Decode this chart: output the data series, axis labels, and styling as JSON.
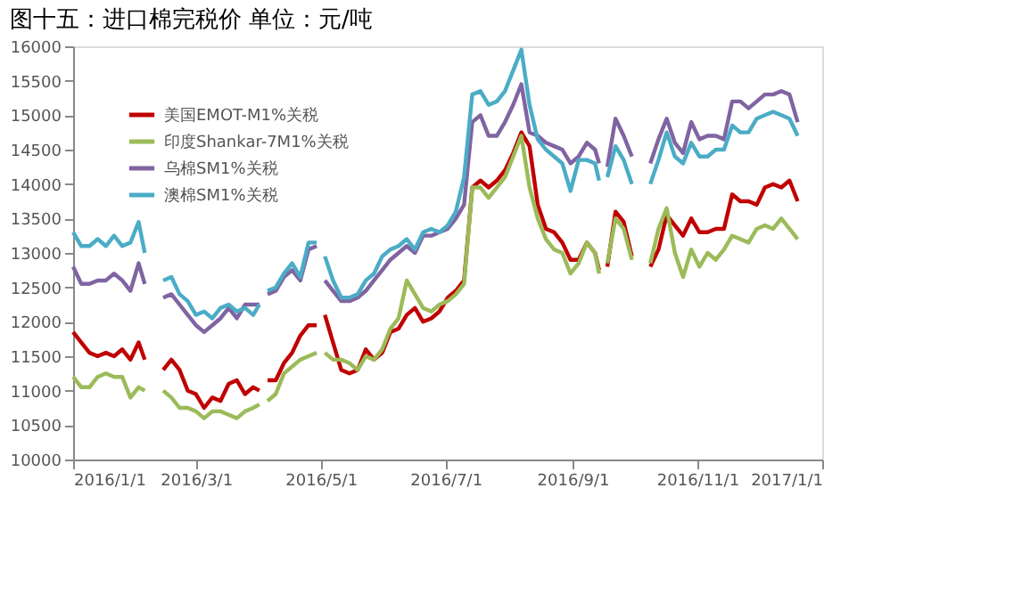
{
  "chart_data": {
    "type": "line",
    "title": "图十五：进口棉完税价    单位：元/吨",
    "x": [
      "2016-01-01",
      "2016-01-05",
      "2016-01-09",
      "2016-01-13",
      "2016-01-17",
      "2016-01-21",
      "2016-01-25",
      "2016-01-29",
      "2016-02-02",
      "2016-02-05",
      "2016-02-10",
      "2016-02-14",
      "2016-02-18",
      "2016-02-22",
      "2016-02-26",
      "2016-03-01",
      "2016-03-05",
      "2016-03-09",
      "2016-03-13",
      "2016-03-17",
      "2016-03-21",
      "2016-03-25",
      "2016-03-29",
      "2016-04-01",
      "2016-04-03",
      "2016-04-05",
      "2016-04-09",
      "2016-04-13",
      "2016-04-17",
      "2016-04-21",
      "2016-04-25",
      "2016-04-29",
      "2016-05-01",
      "2016-05-03",
      "2016-05-07",
      "2016-05-11",
      "2016-05-15",
      "2016-05-19",
      "2016-05-23",
      "2016-05-27",
      "2016-05-31",
      "2016-06-04",
      "2016-06-08",
      "2016-06-12",
      "2016-06-16",
      "2016-06-20",
      "2016-06-24",
      "2016-06-28",
      "2016-07-02",
      "2016-07-06",
      "2016-07-10",
      "2016-07-14",
      "2016-07-18",
      "2016-07-22",
      "2016-07-26",
      "2016-07-30",
      "2016-08-03",
      "2016-08-07",
      "2016-08-11",
      "2016-08-15",
      "2016-08-19",
      "2016-08-23",
      "2016-08-27",
      "2016-08-31",
      "2016-09-04",
      "2016-09-08",
      "2016-09-12",
      "2016-09-14",
      "2016-09-16",
      "2016-09-18",
      "2016-09-22",
      "2016-09-26",
      "2016-09-30",
      "2016-10-04",
      "2016-10-09",
      "2016-10-13",
      "2016-10-17",
      "2016-10-21",
      "2016-10-25",
      "2016-10-29",
      "2016-11-02",
      "2016-11-06",
      "2016-11-10",
      "2016-11-14",
      "2016-11-18",
      "2016-11-22",
      "2016-11-26",
      "2016-11-30",
      "2016-12-04",
      "2016-12-08",
      "2016-12-12",
      "2016-12-16",
      "2016-12-20"
    ],
    "series": [
      {
        "name": "美国EMOT-M1%关税",
        "color": "#c00000",
        "values": [
          11850,
          11700,
          11550,
          11500,
          11550,
          11500,
          11600,
          11450,
          11700,
          11450,
          null,
          11300,
          11450,
          11300,
          11000,
          10950,
          10750,
          10900,
          10850,
          11100,
          11150,
          10950,
          11050,
          11000,
          null,
          11150,
          11150,
          11400,
          11550,
          11800,
          11950,
          11950,
          null,
          12100,
          11700,
          11300,
          11250,
          11300,
          11600,
          11450,
          11550,
          11850,
          11900,
          12100,
          12200,
          12000,
          12050,
          12150,
          12350,
          12450,
          12600,
          13950,
          14050,
          13950,
          14050,
          14200,
          14450,
          14750,
          14550,
          13700,
          13350,
          13300,
          13150,
          12900,
          12900,
          13150,
          13000,
          12750,
          null,
          12800,
          13600,
          13450,
          12950,
          null,
          12800,
          13050,
          13550,
          13400,
          13250,
          13500,
          13300,
          13300,
          13350,
          13350,
          13850,
          13750,
          13750,
          13700,
          13950,
          14000,
          13950,
          14050,
          13750
        ]
      },
      {
        "name": "印度Shankar-7M1%关税",
        "color": "#9bbb59",
        "values": [
          11200,
          11050,
          11050,
          11200,
          11250,
          11200,
          11200,
          10900,
          11050,
          11000,
          null,
          11000,
          10900,
          10750,
          10750,
          10700,
          10600,
          10700,
          10700,
          10650,
          10600,
          10700,
          10750,
          10800,
          null,
          10850,
          10950,
          11250,
          11350,
          11450,
          11500,
          11550,
          null,
          11550,
          11450,
          11450,
          11400,
          11300,
          11500,
          11450,
          11600,
          11900,
          12050,
          12600,
          12400,
          12200,
          12150,
          12250,
          12300,
          12400,
          12550,
          13950,
          13950,
          13800,
          13950,
          14100,
          14400,
          14700,
          13950,
          13500,
          13200,
          13050,
          13000,
          12700,
          12850,
          13150,
          13000,
          12700,
          null,
          12850,
          13500,
          13350,
          12900,
          null,
          12850,
          13350,
          13650,
          13000,
          12650,
          13050,
          12800,
          13000,
          12900,
          13050,
          13250,
          13200,
          13150,
          13350,
          13400,
          13350,
          13500,
          13350,
          13200
        ]
      },
      {
        "name": "乌棉SM1%关税",
        "color": "#8064a2",
        "values": [
          12800,
          12550,
          12550,
          12600,
          12600,
          12700,
          12600,
          12450,
          12850,
          12550,
          null,
          12350,
          12400,
          12250,
          12100,
          11950,
          11850,
          11950,
          12050,
          12200,
          12050,
          12250,
          12250,
          12250,
          null,
          12400,
          12450,
          12650,
          12750,
          12600,
          13050,
          13100,
          null,
          12600,
          12450,
          12300,
          12300,
          12350,
          12450,
          12600,
          12750,
          12900,
          13000,
          13100,
          13000,
          13250,
          13250,
          13300,
          13350,
          13500,
          13700,
          14900,
          15000,
          14700,
          14700,
          14900,
          15150,
          15450,
          14750,
          14700,
          14600,
          14550,
          14500,
          14300,
          14400,
          14600,
          14500,
          14300,
          null,
          14250,
          14950,
          14700,
          14400,
          null,
          14300,
          14650,
          14950,
          14600,
          14450,
          14900,
          14650,
          14700,
          14700,
          14650,
          15200,
          15200,
          15100,
          15200,
          15300,
          15300,
          15350,
          15300,
          14900
        ]
      },
      {
        "name": "澳棉SM1%关税",
        "color": "#4bacc6",
        "values": [
          13300,
          13100,
          13100,
          13200,
          13100,
          13250,
          13100,
          13150,
          13450,
          13000,
          null,
          12600,
          12650,
          12400,
          12300,
          12100,
          12150,
          12050,
          12200,
          12250,
          12150,
          12200,
          12100,
          12250,
          null,
          12450,
          12500,
          12700,
          12850,
          12650,
          13150,
          13150,
          null,
          12950,
          12600,
          12350,
          12350,
          12400,
          12600,
          12700,
          12950,
          13050,
          13100,
          13200,
          13050,
          13300,
          13350,
          13300,
          13400,
          13600,
          14100,
          15300,
          15350,
          15150,
          15200,
          15350,
          15650,
          15950,
          15150,
          14650,
          14500,
          14400,
          14300,
          13900,
          14350,
          14350,
          14300,
          14050,
          null,
          14100,
          14550,
          14350,
          14000,
          null,
          14000,
          14350,
          14750,
          14400,
          14300,
          14600,
          14400,
          14400,
          14500,
          14500,
          14850,
          14750,
          14750,
          14950,
          15000,
          15050,
          15000,
          14950,
          14700
        ]
      }
    ],
    "xlim": [
      "2016-01-01",
      "2017-01-01"
    ],
    "xticks": [
      {
        "value": "2016-01-01",
        "label": "2016/1/1"
      },
      {
        "value": "2016-03-01",
        "label": "2016/3/1"
      },
      {
        "value": "2016-05-01",
        "label": "2016/5/1"
      },
      {
        "value": "2016-07-01",
        "label": "2016/7/1"
      },
      {
        "value": "2016-09-01",
        "label": "2016/9/1"
      },
      {
        "value": "2016-11-01",
        "label": "2016/11/1"
      },
      {
        "value": "2017-01-01",
        "label": "2017/1/1"
      }
    ],
    "ylim": [
      10000,
      16000
    ],
    "yticks": [
      10000,
      10500,
      11000,
      11500,
      12000,
      12500,
      13000,
      13500,
      14000,
      14500,
      15000,
      15500,
      16000
    ],
    "grid": false,
    "legend": "top left",
    "line_style": "solid",
    "marker": "none"
  }
}
